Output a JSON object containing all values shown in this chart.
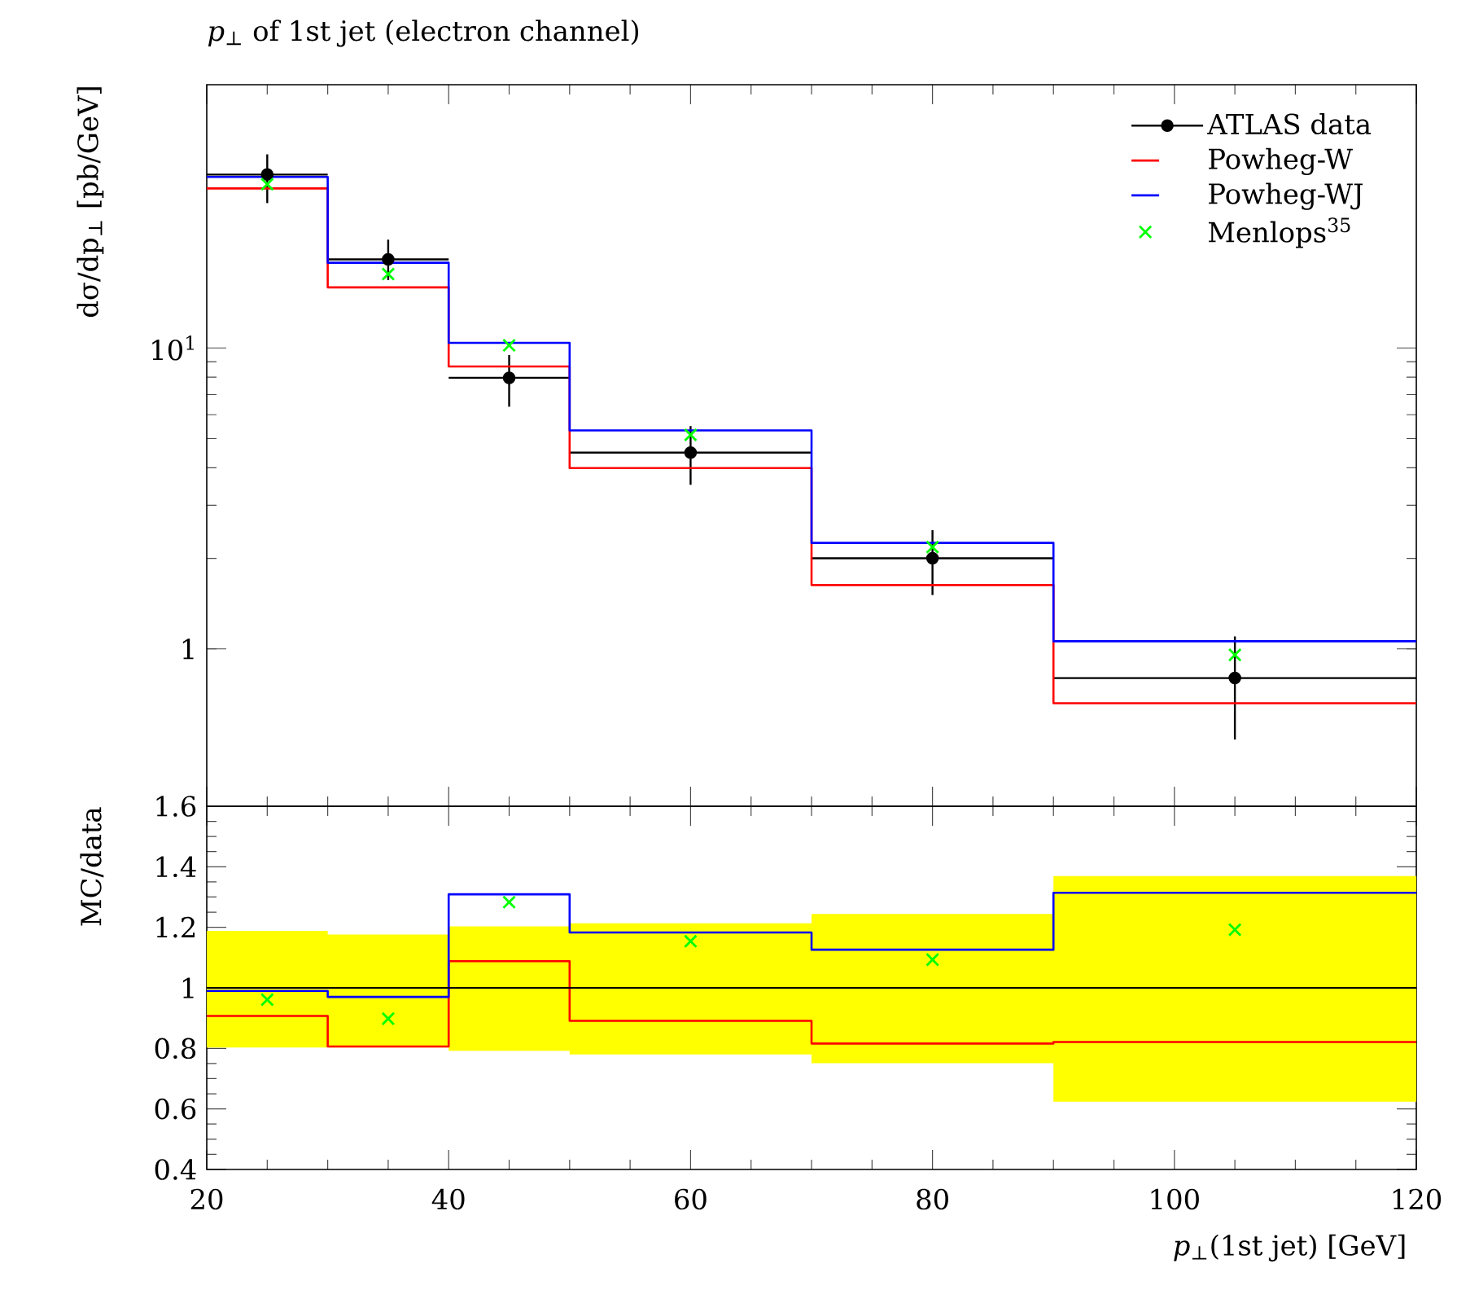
{
  "chart_data": [
    {
      "type": "histogram",
      "title": "*p*$_{⊥}$ of 1st jet (electron channel)",
      "ylabel": "dσ/dp$_{⊥}$ [pb/GeV]",
      "bins": [
        20,
        30,
        40,
        50,
        70,
        90,
        120
      ],
      "xlim": [
        20,
        120
      ],
      "xticks": [
        20,
        40,
        60,
        80,
        100,
        120
      ],
      "ylim": [
        0.3,
        75
      ],
      "yticks": [
        {
          "value": 1,
          "label": "1"
        },
        {
          "value": 10,
          "label": "10$^{1}$"
        }
      ],
      "log": "y",
      "tick_labels": "y",
      "legend": "top right",
      "series": [
        {
          "name": "ATLAS data",
          "type": "scatter",
          "marker": "circle",
          "color": "#000000",
          "x": [
            25,
            35,
            45,
            60,
            80,
            105
          ],
          "values": [
            37.7,
            19.7,
            7.96,
            4.49,
            2.0,
            0.8
          ],
          "errors": [
            [
              30.3,
              44
            ],
            [
              16.8,
              22.9
            ],
            [
              6.38,
              9.47
            ],
            [
              3.51,
              5.5
            ],
            [
              1.51,
              2.48
            ],
            [
              0.5,
              1.1
            ]
          ],
          "xerrors": [
            5,
            5,
            5,
            10,
            10,
            15
          ]
        },
        {
          "name": "Powheg-W",
          "color": "#ff0000",
          "values": [
            33.9,
            15.9,
            8.68,
            3.99,
            1.63,
            0.66
          ]
        },
        {
          "name": "Powheg-WJ",
          "color": "#0000ff",
          "values": [
            37.0,
            19.2,
            10.4,
            5.32,
            2.25,
            1.06
          ]
        },
        {
          "name": "Menlops$^{35}$",
          "type": "scatter",
          "marker": "cross",
          "color": "#00ff00",
          "x": [
            25,
            35,
            45,
            60,
            80,
            105
          ],
          "values": [
            35.0,
            17.6,
            10.2,
            5.14,
            2.18,
            0.955
          ]
        }
      ]
    },
    {
      "type": "histogram",
      "xlabel": "*p*$_{⊥}$(1st jet) [GeV]",
      "ylabel": "MC/data",
      "bins": [
        20,
        30,
        40,
        50,
        70,
        90,
        120
      ],
      "xlim": [
        20,
        120
      ],
      "xticks": [
        20,
        40,
        60,
        80,
        100,
        120
      ],
      "ylim": [
        0.4,
        1.6
      ],
      "yticks": [
        0.4,
        0.6,
        0.8,
        1,
        1.2,
        1.4,
        1.6
      ],
      "series": [
        {
          "color": "#ff0000",
          "values": [
            0.907,
            0.806,
            1.088,
            0.891,
            0.816,
            0.821
          ]
        },
        {
          "color": "#0000ff",
          "values": [
            0.99,
            0.97,
            1.309,
            1.183,
            1.126,
            1.314
          ]
        },
        {
          "type": "scatter",
          "marker": "cross",
          "color": "#00ff00",
          "x": [
            25,
            35,
            45,
            60,
            80,
            105
          ],
          "values": [
            0.961,
            0.898,
            1.283,
            1.154,
            1.093,
            1.192
          ]
        },
        {
          "type": "line",
          "color": "#000000",
          "x": [
            20,
            30,
            30,
            40,
            40,
            50,
            50,
            70,
            70,
            90,
            90,
            120
          ],
          "values": [
            1,
            1,
            1,
            1,
            1,
            1,
            1,
            1,
            1,
            1,
            1,
            1
          ],
          "lower": [
            0.803,
            0.803,
            0.803,
            0.803,
            0.792,
            0.792,
            0.78,
            0.78,
            0.751,
            0.751,
            0.624,
            0.624
          ],
          "upper": [
            1.188,
            1.188,
            1.176,
            1.176,
            1.203,
            1.203,
            1.213,
            1.213,
            1.244,
            1.244,
            1.369,
            1.369
          ]
        }
      ]
    }
  ]
}
